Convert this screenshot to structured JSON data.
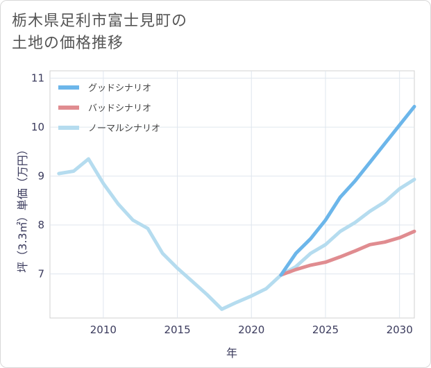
{
  "title_line1": "栃木県足利市富士見町の",
  "title_line2": "土地の価格推移",
  "chart_data": {
    "type": "line",
    "title": "栃木県足利市富士見町の土地の価格推移",
    "xlabel": "年",
    "ylabel": "坪（3.3㎡）単価（万円）",
    "xlim": [
      2006.4,
      2031
    ],
    "ylim": [
      6.1,
      11.15
    ],
    "xticks": [
      2010,
      2015,
      2020,
      2025,
      2030
    ],
    "yticks": [
      7,
      8,
      9,
      10,
      11
    ],
    "grid": true,
    "legend_position": "top-left",
    "series": [
      {
        "name": "グッドシナリオ",
        "color": "#6cb6ea",
        "x": [
          2022,
          2023,
          2024,
          2025,
          2026,
          2027,
          2028,
          2029,
          2030,
          2031
        ],
        "values": [
          6.98,
          7.42,
          7.72,
          8.1,
          8.57,
          8.9,
          9.28,
          9.66,
          10.04,
          10.42
        ]
      },
      {
        "name": "バッドシナリオ",
        "color": "#e08c90",
        "x": [
          2022,
          2023,
          2024,
          2025,
          2026,
          2027,
          2028,
          2029,
          2030,
          2031
        ],
        "values": [
          6.98,
          7.09,
          7.18,
          7.24,
          7.35,
          7.47,
          7.6,
          7.65,
          7.74,
          7.87
        ]
      },
      {
        "name": "ノーマルシナリオ",
        "color": "#b5dcef",
        "x": [
          2007,
          2008,
          2009,
          2010,
          2011,
          2012,
          2013,
          2014,
          2015,
          2016,
          2017,
          2018,
          2019,
          2020,
          2021,
          2022,
          2023,
          2024,
          2025,
          2026,
          2027,
          2028,
          2029,
          2030,
          2031
        ],
        "values": [
          9.05,
          9.1,
          9.35,
          8.85,
          8.43,
          8.1,
          7.93,
          7.42,
          7.12,
          6.85,
          6.58,
          6.28,
          6.42,
          6.55,
          6.7,
          6.98,
          7.15,
          7.42,
          7.6,
          7.87,
          8.05,
          8.28,
          8.47,
          8.74,
          8.93
        ]
      }
    ]
  }
}
